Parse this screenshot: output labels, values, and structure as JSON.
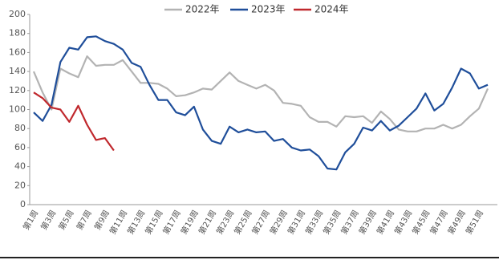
{
  "chart_data": {
    "type": "line",
    "categories": [
      "第1周",
      null,
      "第3周",
      null,
      "第5周",
      null,
      "第7周",
      null,
      "第9周",
      null,
      "第11周",
      null,
      "第13周",
      null,
      "第15周",
      null,
      "第17周",
      null,
      "第19周",
      null,
      "第21周",
      null,
      "第23周",
      null,
      "第25周",
      null,
      "第27周",
      null,
      "第29周",
      null,
      "第31周",
      null,
      "第33周",
      null,
      "第35周",
      null,
      "第37周",
      null,
      "第39周",
      null,
      "第41周",
      null,
      "第43周",
      null,
      "第45周",
      null,
      "第47周",
      null,
      "第49周",
      null,
      "第51周",
      null
    ],
    "series": [
      {
        "name": "2022年",
        "color": "#b3b3b3",
        "values": [
          140,
          118,
          100,
          143,
          138,
          134,
          156,
          146,
          147,
          147,
          152,
          140,
          128,
          128,
          127,
          122,
          114,
          115,
          118,
          122,
          121,
          130,
          139,
          130,
          126,
          122,
          126,
          120,
          107,
          106,
          104,
          92,
          87,
          87,
          82,
          93,
          92,
          93,
          86,
          98,
          90,
          79,
          77,
          77,
          80,
          80,
          84,
          80,
          84,
          93,
          101,
          122
        ]
      },
      {
        "name": "2023年",
        "color": "#1f4e9a",
        "values": [
          97,
          88,
          105,
          150,
          165,
          163,
          176,
          177,
          172,
          169,
          163,
          149,
          145,
          126,
          110,
          110,
          97,
          94,
          103,
          79,
          67,
          64,
          82,
          76,
          79,
          76,
          77,
          67,
          69,
          60,
          57,
          58,
          51,
          38,
          37,
          55,
          64,
          81,
          78,
          88,
          78,
          83,
          92,
          101,
          117,
          99,
          106,
          123,
          143,
          138,
          122,
          126
        ]
      },
      {
        "name": "2024年",
        "color": "#c0282d",
        "values": [
          118,
          112,
          102,
          100,
          87,
          104,
          84,
          68,
          70,
          57,
          null,
          null,
          null,
          null,
          null,
          null,
          null,
          null,
          null,
          null,
          null,
          null,
          null,
          null,
          null,
          null,
          null,
          null,
          null,
          null,
          null,
          null,
          null,
          null,
          null,
          null,
          null,
          null,
          null,
          null,
          null,
          null,
          null,
          null,
          null,
          null,
          null,
          null,
          null,
          null,
          null,
          null
        ]
      }
    ],
    "ylim": [
      0,
      200
    ],
    "yticks": [
      0,
      20,
      40,
      60,
      80,
      100,
      120,
      140,
      160,
      180,
      200
    ],
    "grid": false,
    "legend": "top"
  }
}
